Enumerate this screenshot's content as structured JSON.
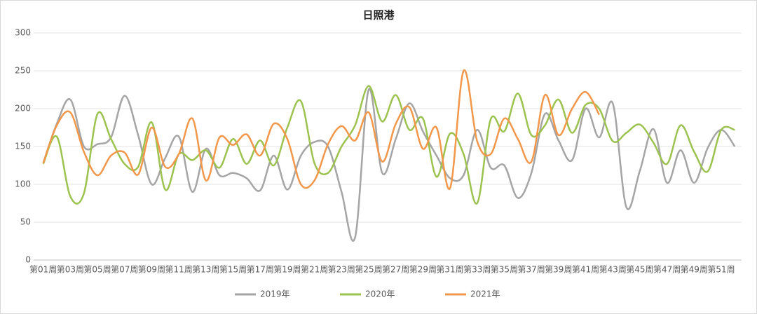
{
  "chart_data": {
    "type": "line",
    "title": "日照港",
    "categories": [
      "第01周",
      null,
      "第03周",
      null,
      "第05周",
      null,
      "第07周",
      null,
      "第09周",
      null,
      "第11周",
      null,
      "第13周",
      null,
      "第15周",
      null,
      "第17周",
      null,
      "第19周",
      null,
      "第21周",
      null,
      "第23周",
      null,
      "第25周",
      null,
      "第27周",
      null,
      "第29周",
      null,
      "第31周",
      null,
      "第33周",
      null,
      "第35周",
      null,
      "第37周",
      null,
      "第39周",
      null,
      "第41周",
      null,
      "第43周",
      null,
      "第45周",
      null,
      "第47周",
      null,
      "第49周",
      null,
      "第51周",
      null
    ],
    "series": [
      {
        "name": "2019年",
        "color": "#a5a5a5",
        "values": [
          128,
          180,
          212,
          150,
          153,
          162,
          217,
          165,
          100,
          135,
          163,
          90,
          147,
          112,
          115,
          108,
          92,
          138,
          93,
          138,
          156,
          150,
          90,
          30,
          225,
          115,
          160,
          207,
          170,
          138,
          108,
          112,
          172,
          122,
          125,
          82,
          115,
          193,
          158,
          132,
          200,
          162,
          207,
          70,
          118,
          173,
          102,
          145,
          102,
          148,
          172,
          150
        ]
      },
      {
        "name": "2020年",
        "color": "#9cc34f",
        "values": [
          127,
          163,
          84,
          88,
          193,
          160,
          127,
          123,
          182,
          93,
          140,
          132,
          145,
          122,
          160,
          127,
          158,
          125,
          175,
          210,
          128,
          115,
          150,
          178,
          230,
          183,
          218,
          172,
          187,
          110,
          167,
          140,
          75,
          186,
          170,
          220,
          165,
          178,
          212,
          168,
          205,
          200,
          157,
          168,
          179,
          155,
          127,
          178,
          143,
          117,
          172,
          172
        ]
      },
      {
        "name": "2021年",
        "color": "#f3974a",
        "values": [
          128,
          178,
          195,
          143,
          112,
          138,
          142,
          113,
          175,
          123,
          140,
          187,
          105,
          162,
          152,
          166,
          138,
          180,
          160,
          100,
          105,
          153,
          177,
          158,
          195,
          130,
          180,
          202,
          147,
          175,
          95,
          250,
          157,
          140,
          187,
          160,
          130,
          218,
          165,
          200,
          222,
          192,
          null,
          null,
          null,
          null,
          null,
          null,
          null,
          null,
          null,
          null
        ]
      }
    ],
    "ylim": [
      0,
      300
    ],
    "yticks": [
      0,
      50,
      100,
      150,
      200,
      250,
      300
    ],
    "grid": true,
    "legend": "bottom"
  }
}
